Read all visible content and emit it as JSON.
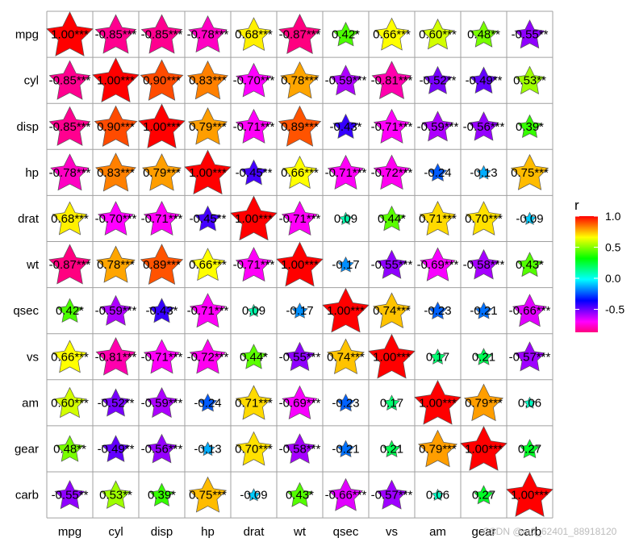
{
  "chart_data": {
    "type": "heatmap",
    "title": "",
    "variables": [
      "mpg",
      "cyl",
      "disp",
      "hp",
      "drat",
      "wt",
      "qsec",
      "vs",
      "am",
      "gear",
      "carb"
    ],
    "matrix": [
      [
        1.0,
        -0.85,
        -0.85,
        -0.78,
        0.68,
        -0.87,
        0.42,
        0.66,
        0.6,
        0.48,
        -0.55
      ],
      [
        -0.85,
        1.0,
        0.9,
        0.83,
        -0.7,
        0.78,
        -0.59,
        -0.81,
        -0.52,
        -0.49,
        0.53
      ],
      [
        -0.85,
        0.9,
        1.0,
        0.79,
        -0.71,
        0.89,
        -0.43,
        -0.71,
        -0.59,
        -0.56,
        0.39
      ],
      [
        -0.78,
        0.83,
        0.79,
        1.0,
        -0.45,
        0.66,
        -0.71,
        -0.72,
        -0.24,
        -0.13,
        0.75
      ],
      [
        0.68,
        -0.7,
        -0.71,
        -0.45,
        1.0,
        -0.71,
        0.09,
        0.44,
        0.71,
        0.7,
        -0.09
      ],
      [
        -0.87,
        0.78,
        0.89,
        0.66,
        -0.71,
        1.0,
        -0.17,
        -0.55,
        -0.69,
        -0.58,
        0.43
      ],
      [
        0.42,
        -0.59,
        -0.43,
        -0.71,
        0.09,
        -0.17,
        1.0,
        0.74,
        -0.23,
        -0.21,
        -0.66
      ],
      [
        0.66,
        -0.81,
        -0.71,
        -0.72,
        0.44,
        -0.55,
        0.74,
        1.0,
        0.17,
        0.21,
        -0.57
      ],
      [
        0.6,
        -0.52,
        -0.59,
        -0.24,
        0.71,
        -0.69,
        -0.23,
        0.17,
        1.0,
        0.79,
        0.06
      ],
      [
        0.48,
        -0.49,
        -0.56,
        -0.13,
        0.7,
        -0.58,
        -0.21,
        0.21,
        0.79,
        1.0,
        0.27
      ],
      [
        -0.55,
        0.53,
        0.39,
        0.75,
        -0.09,
        0.43,
        -0.66,
        -0.57,
        0.06,
        0.27,
        1.0
      ]
    ],
    "labels": [
      [
        "1.00***",
        "-0.85***",
        "-0.85***",
        "-0.78***",
        "0.68***",
        "-0.87***",
        "0.42*",
        "0.66***",
        "0.60***",
        "0.48**",
        "-0.55**"
      ],
      [
        "-0.85***",
        "1.00***",
        "0.90***",
        "0.83***",
        "-0.70***",
        "0.78***",
        "-0.59***",
        "-0.81***",
        "-0.52**",
        "-0.49**",
        "0.53**"
      ],
      [
        "-0.85***",
        "0.90***",
        "1.00***",
        "0.79***",
        "-0.71***",
        "0.89***",
        "-0.43*",
        "-0.71***",
        "-0.59***",
        "-0.56***",
        "0.39*"
      ],
      [
        "-0.78***",
        "0.83***",
        "0.79***",
        "1.00***",
        "-0.45**",
        "0.66***",
        "-0.71***",
        "-0.72***",
        "-0.24",
        "-0.13",
        "0.75***"
      ],
      [
        "0.68***",
        "-0.70***",
        "-0.71***",
        "-0.45**",
        "1.00***",
        "-0.71***",
        "0.09",
        "0.44*",
        "0.71***",
        "0.70***",
        "-0.09"
      ],
      [
        "-0.87***",
        "0.78***",
        "0.89***",
        "0.66***",
        "-0.71***",
        "1.00***",
        "-0.17",
        "-0.55***",
        "-0.69***",
        "-0.58***",
        "0.43*"
      ],
      [
        "0.42*",
        "-0.59***",
        "-0.43*",
        "-0.71***",
        "0.09",
        "-0.17",
        "1.00***",
        "0.74***",
        "-0.23",
        "-0.21",
        "-0.66***"
      ],
      [
        "0.66***",
        "-0.81***",
        "-0.71***",
        "-0.72***",
        "0.44*",
        "-0.55***",
        "0.74***",
        "1.00***",
        "0.17",
        "0.21",
        "-0.57***"
      ],
      [
        "0.60***",
        "-0.52**",
        "-0.59***",
        "-0.24",
        "0.71***",
        "-0.69***",
        "-0.23",
        "0.17",
        "1.00***",
        "0.79***",
        "0.06"
      ],
      [
        "0.48**",
        "-0.49**",
        "-0.56***",
        "-0.13",
        "0.70***",
        "-0.58***",
        "-0.21",
        "0.21",
        "0.79***",
        "1.00***",
        "0.27"
      ],
      [
        "-0.55**",
        "0.53**",
        "0.39*",
        "0.75***",
        "-0.09",
        "0.43*",
        "-0.66***",
        "-0.57***",
        "0.06",
        "0.27",
        "1.00***"
      ]
    ],
    "legend": {
      "title": "r",
      "ticks": [
        1.0,
        0.5,
        0.0,
        -0.5
      ],
      "tick_labels": [
        "1.0",
        "0.5",
        "0.0",
        "-0.5"
      ],
      "range": [
        -0.87,
        1.0
      ],
      "placement": "right"
    },
    "colorscale": [
      "#FF0080",
      "#FF00FF",
      "#8000FF",
      "#0000FF",
      "#0080FF",
      "#00FFFF",
      "#00FF80",
      "#00FF00",
      "#80FF00",
      "#FFFF00",
      "#FF8000",
      "#FF0000"
    ],
    "marker": "star",
    "grid": true
  },
  "watermark": "CSDN @m0_62401_88918120"
}
